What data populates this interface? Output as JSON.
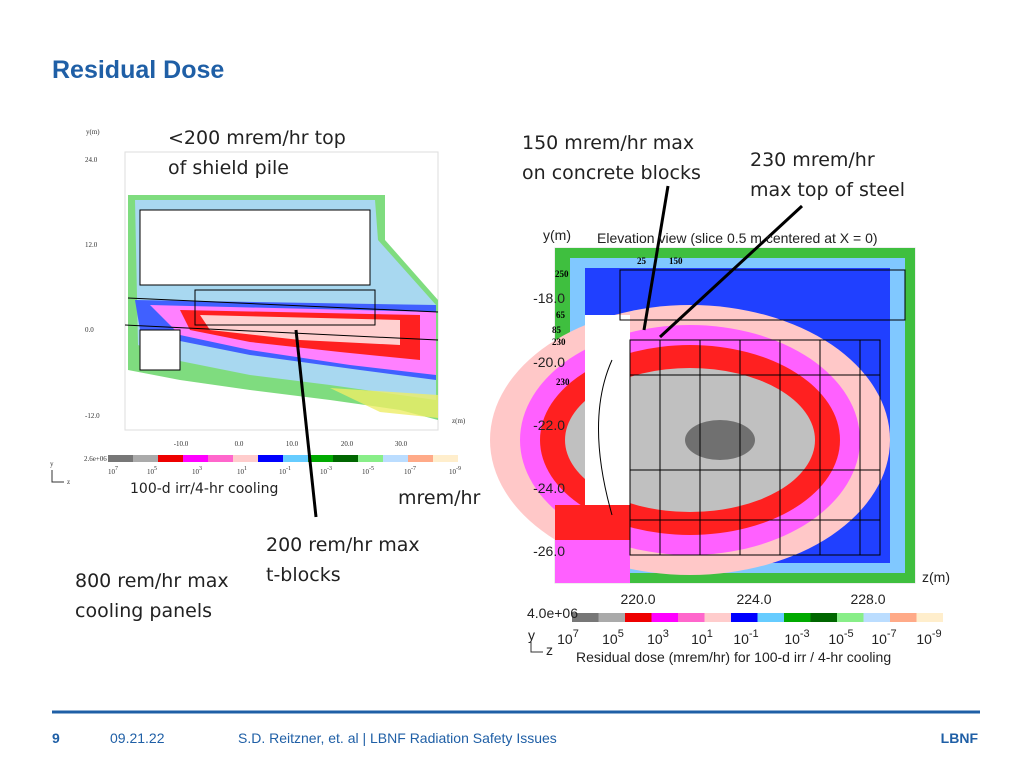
{
  "header": {
    "title": "Residual Dose"
  },
  "annotations": [
    {
      "lines": [
        "<200 mrem/hr top",
        "of shield pile"
      ]
    },
    {
      "lines": [
        "150 mrem/hr max",
        "on concrete blocks"
      ]
    },
    {
      "lines": [
        "230 mrem/hr",
        "max top of steel"
      ]
    },
    {
      "lines": [
        "200 rem/hr max",
        "t-blocks"
      ]
    },
    {
      "lines": [
        "800 rem/hr max",
        "cooling panels"
      ]
    },
    {
      "lines": [
        "mrem/hr"
      ]
    }
  ],
  "left_plot": {
    "y_axis_label": "y(m)",
    "x_axis_label": "z(m)",
    "yticks": [
      "24.0",
      "12.0",
      "0.0",
      "-12.0"
    ],
    "xticks": [
      "-10.0",
      "0.0",
      "10.0",
      "20.0",
      "30.0"
    ],
    "colorbar_max": "2.6e+06",
    "colorbar_labels": [
      {
        "base": "10",
        "exponent": "7"
      },
      {
        "base": "10",
        "exponent": "5"
      },
      {
        "base": "10",
        "exponent": "3"
      },
      {
        "base": "10",
        "exponent": "1"
      },
      {
        "base": "10",
        "exponent": "-1"
      },
      {
        "base": "10",
        "exponent": "-3"
      },
      {
        "base": "10",
        "exponent": "-5"
      },
      {
        "base": "10",
        "exponent": "-7"
      },
      {
        "base": "10",
        "exponent": "-9"
      }
    ],
    "axes_icon": [
      "y",
      "z"
    ],
    "caption": "100-d irr/4-hr cooling"
  },
  "right_plot": {
    "y_axis_label": "y(m)",
    "title": "Elevation view (slice 0.5 m centered at X = 0)",
    "yticks": [
      "-18.0",
      "-20.0",
      "-22.0",
      "-24.0",
      "-26.0"
    ],
    "xticks": [
      "220.0",
      "224.0",
      "228.0"
    ],
    "x_axis_label": "z(m)",
    "point_labels": [
      "250",
      "25",
      "150",
      "65",
      "85",
      "230",
      "230"
    ],
    "colorbar_max": "4.0e+06",
    "colorbar_labels": [
      {
        "base": "10",
        "exponent": "7"
      },
      {
        "base": "10",
        "exponent": "5"
      },
      {
        "base": "10",
        "exponent": "3"
      },
      {
        "base": "10",
        "exponent": "1"
      },
      {
        "base": "10",
        "exponent": "-1"
      },
      {
        "base": "10",
        "exponent": "-3"
      },
      {
        "base": "10",
        "exponent": "-5"
      },
      {
        "base": "10",
        "exponent": "-7"
      },
      {
        "base": "10",
        "exponent": "-9"
      }
    ],
    "axes_icon": [
      "y",
      "z"
    ],
    "caption": "Residual dose (mrem/hr) for 100-d irr / 4-hr cooling"
  },
  "footer": {
    "page": "9",
    "date": "09.21.22",
    "author": "S.D. Reitzner, et. al  | LBNF Radiation Safety Issues",
    "logo": "LBNF"
  }
}
